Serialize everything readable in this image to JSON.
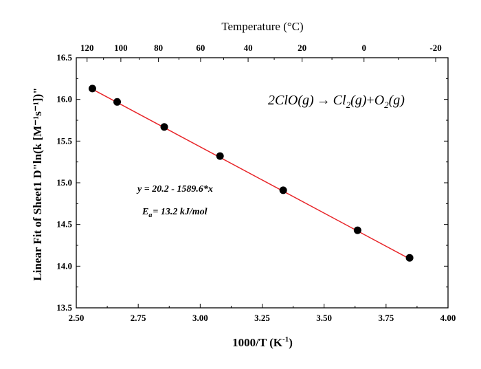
{
  "chart_data": {
    "type": "scatter",
    "xlabel": "1000/T",
    "xlabel_unit_base": "K",
    "xlabel_unit_exp": "-1",
    "ylabel": "Linear Fit of Sheet1 D\"ln(k [M⁻¹s⁻¹])\"",
    "xlim": [
      2.5,
      4.0
    ],
    "ylim": [
      13.5,
      16.5
    ],
    "x_ticks": [
      "2.50",
      "2.75",
      "3.00",
      "3.25",
      "3.50",
      "3.75",
      "4.00"
    ],
    "y_ticks": [
      "13.5",
      "14.0",
      "14.5",
      "15.0",
      "15.5",
      "16.0",
      "16.5"
    ],
    "top_axis": {
      "title": "Temperature (°C)",
      "ticks": [
        {
          "label": "120",
          "celsius": 120
        },
        {
          "label": "100",
          "celsius": 100
        },
        {
          "label": "80",
          "celsius": 80
        },
        {
          "label": "60",
          "celsius": 60
        },
        {
          "label": "40",
          "celsius": 40
        },
        {
          "label": "20",
          "celsius": 20
        },
        {
          "label": "0",
          "celsius": 0
        },
        {
          "label": "-20",
          "celsius": -20
        }
      ]
    },
    "points": [
      {
        "x": 2.565,
        "y": 16.13
      },
      {
        "x": 2.665,
        "y": 15.97
      },
      {
        "x": 2.855,
        "y": 15.67
      },
      {
        "x": 3.08,
        "y": 15.32
      },
      {
        "x": 3.335,
        "y": 14.91
      },
      {
        "x": 3.635,
        "y": 14.43
      },
      {
        "x": 3.845,
        "y": 14.1
      }
    ],
    "fit": {
      "intercept": 20.2,
      "slope": -1.5896,
      "x_start": 2.565,
      "x_end": 3.845,
      "color": "#e8262a"
    },
    "equation": "y = 20.2 - 1589.6*x",
    "activation_energy": {
      "symbol": "E",
      "subscript": "a",
      "text": "= 13.2 kJ/mol"
    },
    "reaction": {
      "reactant": "2ClO(g)",
      "arrow": "→",
      "p1_base": "Cl",
      "p1_sub": "2",
      "p1_rest": "(g)",
      "plus": "+",
      "p2_base": "O",
      "p2_sub": "2",
      "p2_rest": "(g)"
    },
    "grid": false,
    "marker_color": "#000000",
    "line_color": "#e8262a"
  }
}
